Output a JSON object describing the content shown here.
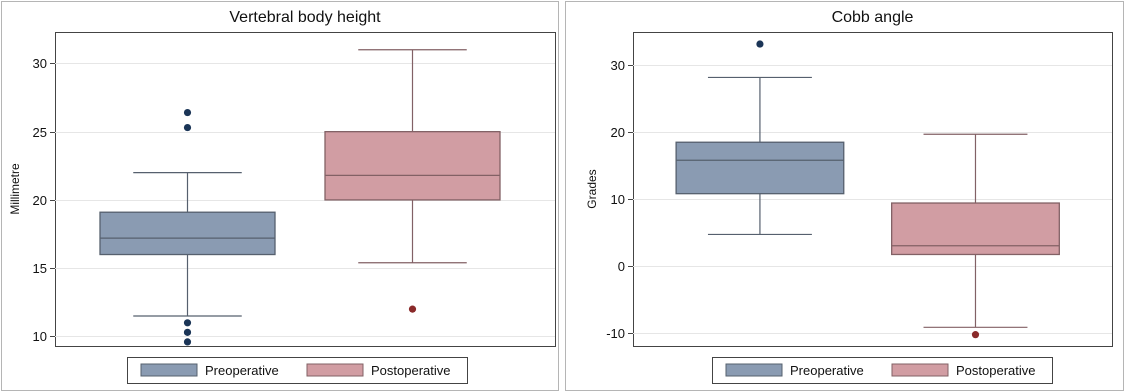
{
  "chart_data": [
    {
      "type": "box",
      "title": "Vertebral body height",
      "xlabel": "",
      "ylabel": "Millimetre",
      "ylim": [
        9.3,
        32.3
      ],
      "yticks": [
        10,
        15,
        20,
        25,
        30
      ],
      "grid": "horizontal",
      "legend": "bottom",
      "series": [
        {
          "name": "Preoperative",
          "color": "#8a9bb2",
          "whisker_low": 11.5,
          "q1": 16.0,
          "median": 17.2,
          "q3": 19.1,
          "whisker_high": 22.0,
          "outliers": [
            26.4,
            25.3,
            11.0,
            10.3,
            9.6
          ]
        },
        {
          "name": "Postoperative",
          "color": "#d19da3",
          "whisker_low": 15.4,
          "q1": 20.0,
          "median": 21.8,
          "q3": 25.0,
          "whisker_high": 31.0,
          "outliers": [
            12.0
          ]
        }
      ]
    },
    {
      "type": "box",
      "title": "Cobb angle",
      "xlabel": "",
      "ylabel": "Grades",
      "ylim": [
        -12,
        35
      ],
      "yticks": [
        -10,
        0,
        10,
        20,
        30
      ],
      "grid": "horizontal",
      "legend": "bottom",
      "series": [
        {
          "name": "Preoperative",
          "color": "#8a9bb2",
          "whisker_low": 4.7,
          "q1": 10.8,
          "median": 15.8,
          "q3": 18.5,
          "whisker_high": 28.2,
          "outliers": [
            33.2
          ]
        },
        {
          "name": "Postoperative",
          "color": "#d19da3",
          "whisker_low": -9.2,
          "q1": 1.7,
          "median": 3.0,
          "q3": 9.4,
          "whisker_high": 19.7,
          "outliers": [
            -10.3
          ]
        }
      ]
    }
  ]
}
